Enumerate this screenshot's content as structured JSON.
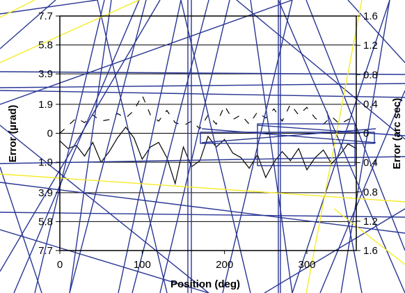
{
  "chart_data": {
    "type": "line",
    "xlabel": "Position (deg)",
    "ylabel_left": "Error (µrad)",
    "ylabel_right": "Error (arc sec)",
    "xlim": [
      0,
      360
    ],
    "x_ticks": [
      {
        "value": 0,
        "label": "0"
      },
      {
        "value": 100,
        "label": "100"
      },
      {
        "value": 200,
        "label": "200"
      },
      {
        "value": 300,
        "label": "300"
      }
    ],
    "ylim_left": [
      -7.7,
      7.7
    ],
    "y_ticks_left": [
      {
        "value": 7.7,
        "label": "7.7"
      },
      {
        "value": 5.8,
        "label": "5.8"
      },
      {
        "value": 3.9,
        "label": "3.9"
      },
      {
        "value": 1.9,
        "label": "1.9"
      },
      {
        "value": 0,
        "label": "0"
      },
      {
        "value": -1.9,
        "label": "1.9"
      },
      {
        "value": -3.9,
        "label": "3.9"
      },
      {
        "value": -5.8,
        "label": "5.8"
      },
      {
        "value": -7.7,
        "label": "7.7"
      }
    ],
    "ylim_right": [
      -1.6,
      1.6
    ],
    "y_ticks_right": [
      {
        "value": 1.6,
        "label": "1.6"
      },
      {
        "value": 1.2,
        "label": "1.2"
      },
      {
        "value": 0.8,
        "label": "0.8"
      },
      {
        "value": 0.4,
        "label": "0.4"
      },
      {
        "value": 0,
        "label": "0"
      },
      {
        "value": -0.4,
        "label": "0.4"
      },
      {
        "value": -0.8,
        "label": "0.8"
      },
      {
        "value": -1.2,
        "label": "1.2"
      },
      {
        "value": -1.6,
        "label": "1.6"
      }
    ],
    "grid": "horizontal",
    "series": [
      {
        "style": "dashed",
        "color": "#000000",
        "x": [
          0,
          10,
          20,
          30,
          40,
          50,
          60,
          70,
          80,
          90,
          100,
          110,
          120,
          130,
          140,
          150,
          160,
          170,
          180,
          190,
          200,
          210,
          220,
          230,
          240,
          250,
          260,
          270,
          280,
          290,
          300,
          310,
          320,
          330,
          340,
          350,
          360
        ],
        "y": [
          0.0,
          0.5,
          1.0,
          0.7,
          1.2,
          0.8,
          0.9,
          1.3,
          1.0,
          1.5,
          2.5,
          1.2,
          0.8,
          1.5,
          0.7,
          0.5,
          0.8,
          0.3,
          1.2,
          0.6,
          1.8,
          0.9,
          1.2,
          0.6,
          1.4,
          1.0,
          1.6,
          0.8,
          1.9,
          1.2,
          1.7,
          1.0,
          0.6,
          1.1,
          0.6,
          0.9,
          1.2
        ]
      },
      {
        "style": "solid",
        "color": "#000000",
        "x": [
          0,
          10,
          20,
          30,
          40,
          50,
          60,
          70,
          80,
          90,
          100,
          110,
          120,
          130,
          140,
          150,
          160,
          170,
          180,
          190,
          200,
          210,
          220,
          230,
          240,
          250,
          260,
          270,
          280,
          290,
          300,
          310,
          320,
          330,
          340,
          350,
          360
        ],
        "y": [
          -0.5,
          -1.0,
          -0.8,
          -1.5,
          -0.6,
          -1.9,
          -1.2,
          -0.3,
          0.4,
          -0.3,
          -1.7,
          -0.9,
          -0.6,
          -1.6,
          -3.3,
          -0.9,
          -2.2,
          -1.8,
          -0.2,
          -0.9,
          -0.4,
          -1.3,
          -1.6,
          -2.3,
          -1.4,
          -2.9,
          -1.9,
          -1.2,
          -1.8,
          -1.0,
          -2.4,
          -1.6,
          -1.1,
          -2.0,
          -1.4,
          -0.7,
          -1.0
        ]
      }
    ],
    "overlay_line_colors": [
      "#283593",
      "#f5eb25"
    ]
  }
}
